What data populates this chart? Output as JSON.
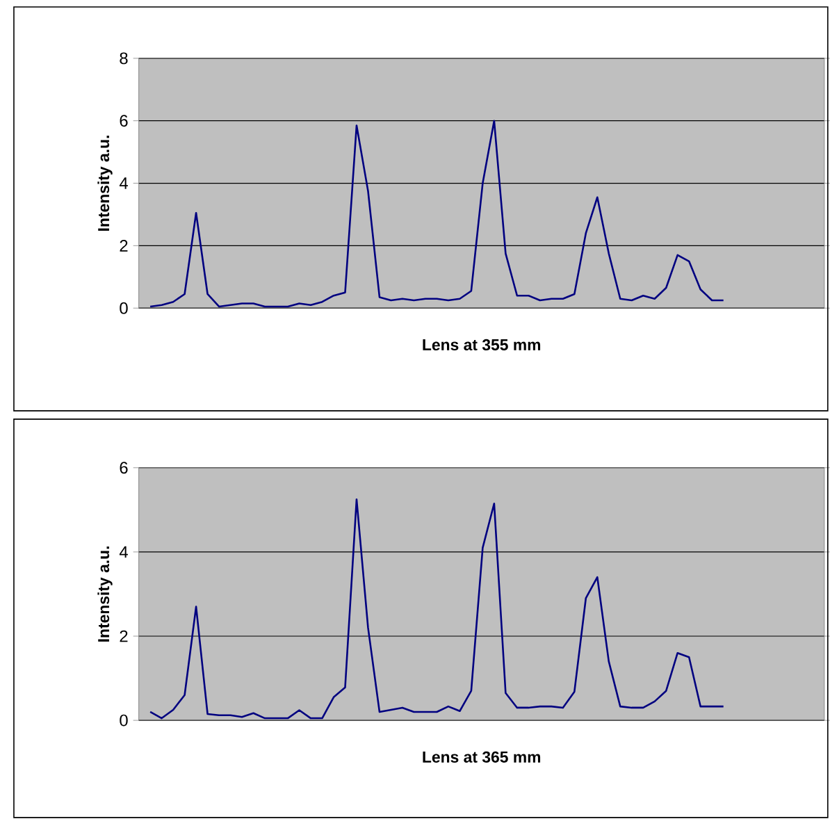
{
  "chart_data": [
    {
      "type": "line",
      "xlabel": "Lens at 355 mm",
      "ylabel": "Intensity a.u.",
      "color": "#000080",
      "ylim": [
        0,
        8
      ],
      "yticks": [
        0,
        2,
        4,
        6,
        8
      ],
      "grid": "y",
      "tick_labels": "y",
      "categories": [
        null,
        null,
        null,
        null,
        null,
        null,
        null,
        null,
        null,
        null,
        null,
        null,
        null,
        null,
        null,
        null,
        null,
        null,
        null,
        null,
        null,
        null,
        null,
        null,
        null,
        null,
        null,
        null,
        null,
        null,
        null,
        null,
        null,
        null,
        null,
        null,
        null,
        null,
        null,
        null,
        null,
        null,
        null,
        null,
        null,
        null,
        null,
        null,
        null,
        null,
        null
      ],
      "values": [
        0.05,
        0.1,
        0.2,
        0.45,
        3.05,
        0.45,
        0.05,
        0.1,
        0.15,
        0.15,
        0.05,
        0.05,
        0.05,
        0.15,
        0.1,
        0.2,
        0.4,
        0.5,
        5.85,
        3.75,
        0.35,
        0.25,
        0.3,
        0.25,
        0.3,
        0.3,
        0.25,
        0.3,
        0.55,
        4.0,
        6.0,
        1.75,
        0.4,
        0.4,
        0.25,
        0.3,
        0.3,
        0.45,
        2.4,
        3.55,
        1.75,
        0.3,
        0.25,
        0.4,
        0.3,
        0.65,
        1.7,
        1.5,
        0.6,
        0.25,
        0.25
      ]
    },
    {
      "type": "line",
      "xlabel": "Lens at 365 mm",
      "ylabel": "Intensity a.u.",
      "color": "#000080",
      "ylim": [
        0,
        6
      ],
      "yticks": [
        0,
        2,
        4,
        6
      ],
      "grid": "y",
      "tick_labels": "y",
      "categories": [
        null,
        null,
        null,
        null,
        null,
        null,
        null,
        null,
        null,
        null,
        null,
        null,
        null,
        null,
        null,
        null,
        null,
        null,
        null,
        null,
        null,
        null,
        null,
        null,
        null,
        null,
        null,
        null,
        null,
        null,
        null,
        null,
        null,
        null,
        null,
        null,
        null,
        null,
        null,
        null,
        null,
        null,
        null,
        null,
        null,
        null,
        null,
        null,
        null,
        null,
        null
      ],
      "values": [
        0.2,
        0.05,
        0.25,
        0.6,
        2.7,
        0.15,
        0.12,
        0.12,
        0.08,
        0.17,
        0.05,
        0.05,
        0.05,
        0.24,
        0.05,
        0.05,
        0.55,
        0.78,
        5.25,
        2.2,
        0.2,
        0.25,
        0.3,
        0.2,
        0.2,
        0.2,
        0.33,
        0.22,
        0.7,
        4.1,
        5.15,
        0.65,
        0.3,
        0.3,
        0.33,
        0.33,
        0.3,
        0.68,
        2.9,
        3.4,
        1.4,
        0.33,
        0.3,
        0.3,
        0.45,
        0.7,
        1.6,
        1.5,
        0.33,
        0.33,
        0.33
      ]
    }
  ]
}
